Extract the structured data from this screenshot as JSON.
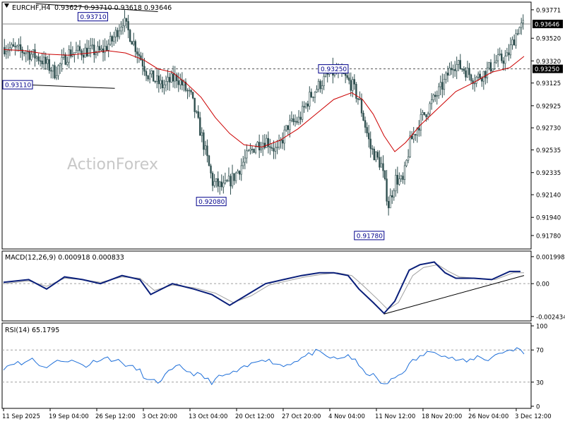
{
  "header": {
    "symbol": "EURCHF,H4",
    "ohlc": "0.93627 0.93710 0.93618 0.93646"
  },
  "watermark": "ActionForex",
  "colors": {
    "background": "#ffffff",
    "candle": "#2f4f4f",
    "ma": "#cc0000",
    "macd": "#0a1f7a",
    "signal": "#a0a0a0",
    "rsi": "#1e6fd9",
    "trendline": "#000000",
    "label_border": "#00008b",
    "current_price_bg": "#000000",
    "current_price_fg": "#ffffff"
  },
  "chart_data": [
    {
      "type": "candlestick",
      "panel": "price",
      "ylim": [
        0.9168,
        0.9382
      ],
      "price_ticks": [
        "0.93771",
        "0.93520",
        "0.93320",
        "0.93125",
        "0.92925",
        "0.92730",
        "0.92535",
        "0.92335",
        "0.92140",
        "0.91940",
        "0.91780"
      ],
      "x_ticks": [
        "11 Sep 2025",
        "19 Sep 04:00",
        "26 Sep 12:00",
        "3 Oct 20:00",
        "13 Oct 04:00",
        "20 Oct 12:00",
        "27 Oct 20:00",
        "4 Nov 04:00",
        "11 Nov 12:00",
        "18 Nov 20:00",
        "26 Nov 04:00",
        "3 Dec 12:00"
      ],
      "bar_count": 290,
      "close_path": [
        [
          0,
          0.9344
        ],
        [
          12,
          0.934
        ],
        [
          20,
          0.9334
        ],
        [
          28,
          0.9322
        ],
        [
          36,
          0.9339
        ],
        [
          46,
          0.9341
        ],
        [
          54,
          0.934
        ],
        [
          60,
          0.935
        ],
        [
          66,
          0.9368
        ],
        [
          72,
          0.9348
        ],
        [
          80,
          0.932
        ],
        [
          88,
          0.931
        ],
        [
          96,
          0.9318
        ],
        [
          104,
          0.93
        ],
        [
          110,
          0.9265
        ],
        [
          116,
          0.9225
        ],
        [
          122,
          0.922
        ],
        [
          128,
          0.923
        ],
        [
          134,
          0.9245
        ],
        [
          140,
          0.9258
        ],
        [
          146,
          0.9262
        ],
        [
          152,
          0.9252
        ],
        [
          158,
          0.9275
        ],
        [
          164,
          0.928
        ],
        [
          170,
          0.93
        ],
        [
          176,
          0.9312
        ],
        [
          182,
          0.9322
        ],
        [
          188,
          0.932
        ],
        [
          194,
          0.931
        ],
        [
          198,
          0.9295
        ],
        [
          204,
          0.9255
        ],
        [
          210,
          0.924
        ],
        [
          214,
          0.9205
        ],
        [
          218,
          0.9228
        ],
        [
          222,
          0.9225
        ],
        [
          226,
          0.926
        ],
        [
          232,
          0.928
        ],
        [
          238,
          0.9295
        ],
        [
          244,
          0.931
        ],
        [
          250,
          0.933
        ],
        [
          256,
          0.9325
        ],
        [
          262,
          0.9316
        ],
        [
          268,
          0.9322
        ],
        [
          274,
          0.9332
        ],
        [
          280,
          0.9335
        ],
        [
          286,
          0.936
        ],
        [
          290,
          0.93646
        ]
      ],
      "ma_path": [
        [
          0,
          0.9342
        ],
        [
          12,
          0.9341
        ],
        [
          24,
          0.9338
        ],
        [
          36,
          0.9337
        ],
        [
          48,
          0.9339
        ],
        [
          58,
          0.9341
        ],
        [
          68,
          0.9339
        ],
        [
          78,
          0.9333
        ],
        [
          86,
          0.9325
        ],
        [
          94,
          0.9322
        ],
        [
          102,
          0.9312
        ],
        [
          110,
          0.93
        ],
        [
          118,
          0.9282
        ],
        [
          126,
          0.9268
        ],
        [
          134,
          0.9258
        ],
        [
          144,
          0.9256
        ],
        [
          154,
          0.9262
        ],
        [
          164,
          0.9272
        ],
        [
          174,
          0.9285
        ],
        [
          184,
          0.9298
        ],
        [
          194,
          0.9304
        ],
        [
          200,
          0.9298
        ],
        [
          206,
          0.9285
        ],
        [
          212,
          0.9266
        ],
        [
          218,
          0.9252
        ],
        [
          224,
          0.926
        ],
        [
          232,
          0.9275
        ],
        [
          242,
          0.929
        ],
        [
          252,
          0.9305
        ],
        [
          262,
          0.9313
        ],
        [
          272,
          0.9322
        ],
        [
          282,
          0.9326
        ],
        [
          290,
          0.9336
        ]
      ],
      "hlines": [
        {
          "price": 0.93646,
          "style": "solid"
        },
        {
          "price": 0.9325,
          "style": "dashed"
        }
      ],
      "price_labels": [
        {
          "text": "0.93710",
          "bar": 58,
          "price": 0.9371,
          "side": "left"
        },
        {
          "text": "0.93110",
          "bar": 0,
          "price": 0.9311,
          "side": "left"
        },
        {
          "text": "0.93250",
          "bar": 192,
          "price": 0.9325,
          "side": "left"
        },
        {
          "text": "0.92080",
          "bar": 124,
          "price": 0.9208,
          "side": "left"
        },
        {
          "text": "0.91780",
          "bar": 212,
          "price": 0.9178,
          "side": "left"
        }
      ],
      "trendlines": [
        {
          "from": [
            0,
            0.93118
          ],
          "to": [
            62,
            0.93078
          ]
        },
        {
          "from": [
            18,
            0.93825
          ],
          "to": [
            86,
            0.93755
          ]
        }
      ],
      "current_labels": [
        {
          "text": "0.93646",
          "price": 0.93646
        },
        {
          "text": "0.93250",
          "price": 0.9325
        }
      ]
    },
    {
      "type": "line",
      "panel": "macd",
      "title": "MACD(12,26,9) 0.000918 0.000833",
      "ylim": [
        -0.0026,
        0.0022
      ],
      "y_ticks": [
        "0.001998",
        "0.00",
        "-0.002434"
      ],
      "macd_path": [
        [
          0,
          0.0001
        ],
        [
          14,
          0.0003
        ],
        [
          24,
          -0.0004
        ],
        [
          34,
          0.0005
        ],
        [
          44,
          0.0003
        ],
        [
          54,
          0.0
        ],
        [
          66,
          0.0006
        ],
        [
          76,
          0.0003
        ],
        [
          82,
          -0.0008
        ],
        [
          94,
          0.0
        ],
        [
          106,
          -0.0004
        ],
        [
          116,
          -0.0008
        ],
        [
          126,
          -0.0016
        ],
        [
          136,
          -0.0008
        ],
        [
          146,
          0.0
        ],
        [
          156,
          0.0003
        ],
        [
          166,
          0.0006
        ],
        [
          176,
          0.0008
        ],
        [
          184,
          0.0008
        ],
        [
          192,
          0.0006
        ],
        [
          198,
          -0.0004
        ],
        [
          206,
          -0.0014
        ],
        [
          212,
          -0.0022
        ],
        [
          218,
          -0.0013
        ],
        [
          226,
          0.001
        ],
        [
          232,
          0.0014
        ],
        [
          240,
          0.0016
        ],
        [
          246,
          0.0008
        ],
        [
          252,
          0.0004
        ],
        [
          262,
          0.0004
        ],
        [
          272,
          0.0003
        ],
        [
          282,
          0.0009
        ],
        [
          288,
          0.0009
        ]
      ],
      "signal_path": [
        [
          0,
          0.0
        ],
        [
          14,
          0.0002
        ],
        [
          24,
          -0.0002
        ],
        [
          34,
          0.0004
        ],
        [
          44,
          0.0003
        ],
        [
          54,
          0.0001
        ],
        [
          66,
          0.0005
        ],
        [
          76,
          0.0004
        ],
        [
          84,
          -0.0005
        ],
        [
          94,
          -0.0001
        ],
        [
          106,
          -0.0003
        ],
        [
          118,
          -0.0007
        ],
        [
          128,
          -0.0014
        ],
        [
          138,
          -0.0009
        ],
        [
          148,
          -0.0001
        ],
        [
          158,
          0.0002
        ],
        [
          168,
          0.0005
        ],
        [
          178,
          0.0007
        ],
        [
          186,
          0.0008
        ],
        [
          194,
          0.0006
        ],
        [
          200,
          -0.0001
        ],
        [
          208,
          -0.0011
        ],
        [
          214,
          -0.0019
        ],
        [
          220,
          -0.0014
        ],
        [
          228,
          0.0006
        ],
        [
          234,
          0.0012
        ],
        [
          242,
          0.0014
        ],
        [
          248,
          0.0009
        ],
        [
          254,
          0.0005
        ],
        [
          264,
          0.0004
        ],
        [
          274,
          0.0003
        ],
        [
          284,
          0.0008
        ],
        [
          290,
          0.0008
        ]
      ],
      "trendline": {
        "from": [
          212,
          -0.00225
        ],
        "to": [
          290,
          0.0006
        ]
      }
    },
    {
      "type": "line",
      "panel": "rsi",
      "title": "RSI(14) 65.1795",
      "ylim": [
        0,
        100
      ],
      "y_ticks": [
        "100",
        "70",
        "30",
        "0"
      ],
      "levels": [
        70,
        30
      ],
      "rsi_path": [
        [
          0,
          48
        ],
        [
          6,
          55
        ],
        [
          10,
          52
        ],
        [
          16,
          60
        ],
        [
          22,
          48
        ],
        [
          28,
          54
        ],
        [
          34,
          58
        ],
        [
          40,
          55
        ],
        [
          46,
          50
        ],
        [
          52,
          58
        ],
        [
          58,
          60
        ],
        [
          64,
          56
        ],
        [
          70,
          50
        ],
        [
          76,
          44
        ],
        [
          80,
          32
        ],
        [
          86,
          30
        ],
        [
          92,
          42
        ],
        [
          98,
          50
        ],
        [
          104,
          42
        ],
        [
          110,
          38
        ],
        [
          116,
          30
        ],
        [
          120,
          36
        ],
        [
          126,
          40
        ],
        [
          132,
          45
        ],
        [
          138,
          52
        ],
        [
          144,
          60
        ],
        [
          150,
          55
        ],
        [
          156,
          50
        ],
        [
          162,
          56
        ],
        [
          168,
          62
        ],
        [
          174,
          68
        ],
        [
          180,
          62
        ],
        [
          186,
          58
        ],
        [
          192,
          64
        ],
        [
          196,
          56
        ],
        [
          200,
          44
        ],
        [
          206,
          38
        ],
        [
          212,
          26
        ],
        [
          216,
          32
        ],
        [
          222,
          42
        ],
        [
          228,
          56
        ],
        [
          234,
          64
        ],
        [
          240,
          70
        ],
        [
          246,
          62
        ],
        [
          252,
          58
        ],
        [
          258,
          55
        ],
        [
          264,
          62
        ],
        [
          270,
          58
        ],
        [
          276,
          66
        ],
        [
          282,
          70
        ],
        [
          286,
          72
        ],
        [
          290,
          65
        ]
      ]
    }
  ]
}
